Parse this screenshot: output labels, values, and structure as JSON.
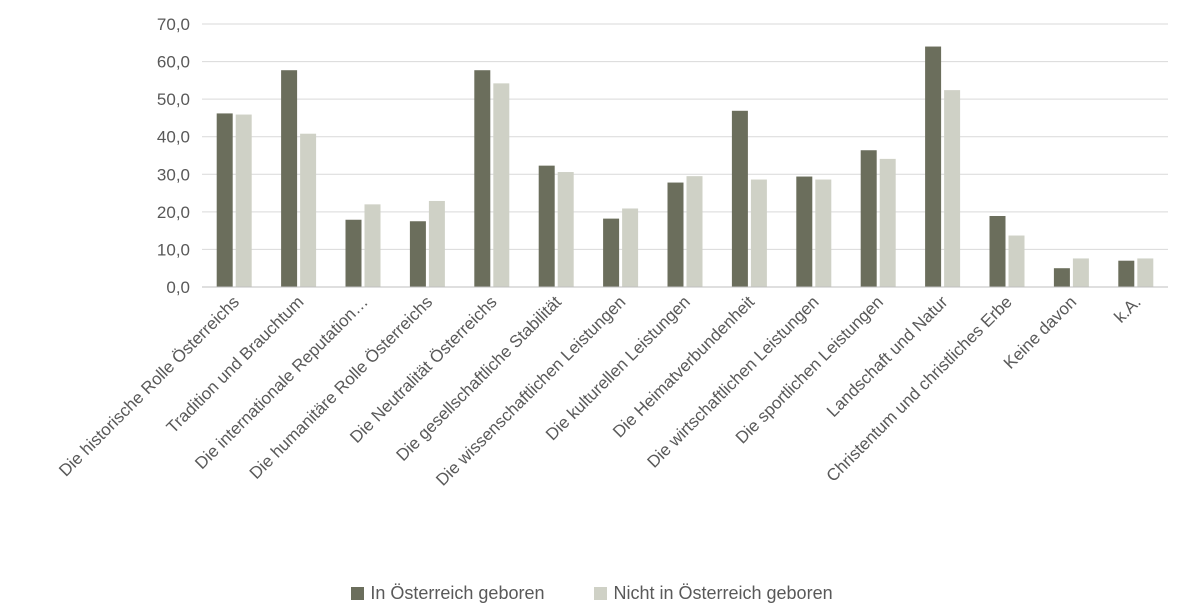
{
  "chart_data": {
    "type": "bar",
    "categories": [
      "Die historische Rolle Österreichs",
      "Tradition und Brauchtum",
      "Die internationale Reputation…",
      "Die humanitäre Rolle Österreichs",
      "Die Neutralität Österreichs",
      "Die gesellschaftliche Stabilität",
      "Die wissenschaftlichen Leistungen",
      "Die kulturellen Leistungen",
      "Die Heimatverbundenheit",
      "Die wirtschaftlichen Leistungen",
      "Die sportlichen Leistungen",
      "Landschaft und Natur",
      "Christentum und christliches Erbe",
      "Keine davon",
      "k.A."
    ],
    "series": [
      {
        "name": "In Österreich geboren",
        "color": "#6b6e5c",
        "values": [
          46.2,
          57.7,
          17.9,
          17.5,
          57.7,
          32.3,
          18.2,
          27.8,
          46.9,
          29.4,
          36.4,
          64.0,
          18.9,
          5.0,
          7.0
        ]
      },
      {
        "name": "Nicht in Österreich geboren",
        "color": "#cfd1c6",
        "values": [
          45.9,
          40.8,
          22.0,
          22.9,
          54.2,
          30.6,
          20.9,
          29.5,
          28.6,
          28.6,
          34.1,
          52.4,
          13.7,
          7.6,
          7.6
        ]
      }
    ],
    "y_ticks": [
      "0,0",
      "10,0",
      "20,0",
      "30,0",
      "40,0",
      "50,0",
      "60,0",
      "70,0"
    ],
    "ylim": [
      0,
      70
    ],
    "grid": true,
    "legend_position": "bottom",
    "title": "",
    "xlabel": "",
    "ylabel": ""
  }
}
